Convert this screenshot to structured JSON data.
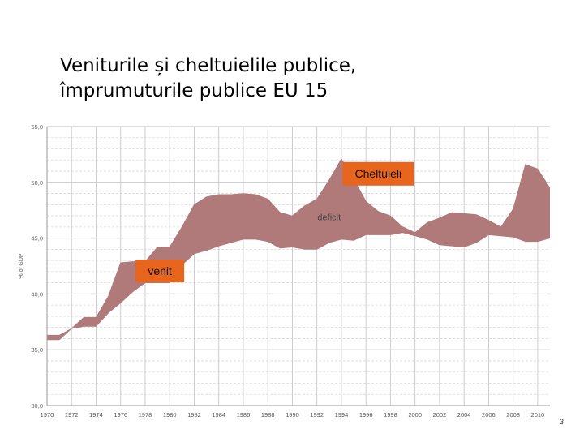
{
  "slide": {
    "title_line1": "Veniturile și cheltuielile publice,",
    "title_line2": "împrumuturile publice EU 15",
    "page_number": "3"
  },
  "chart_data": {
    "type": "area",
    "title": "",
    "ylabel": "% of GDP",
    "xlabel": "",
    "ylim": [
      30,
      55
    ],
    "x_ticks": [
      "1970",
      "1972",
      "1974",
      "1976",
      "1978",
      "1980",
      "1982",
      "1984",
      "1986",
      "1988",
      "1990",
      "1992",
      "1994",
      "1996",
      "1998",
      "2000",
      "2002",
      "2004",
      "2006",
      "2008",
      "2010"
    ],
    "y_ticks": [
      "30,0",
      "35,0",
      "40,0",
      "45,0",
      "50,0",
      "55,0"
    ],
    "grid": true,
    "colors": {
      "band": "#b07a7a",
      "label_bg": "#e8651e"
    },
    "series": [
      {
        "name": "Cheltuieli",
        "x": [
          1970,
          1971,
          1972,
          1973,
          1974,
          1975,
          1976,
          1977,
          1978,
          1979,
          1980,
          1981,
          1982,
          1983,
          1984,
          1985,
          1986,
          1987,
          1988,
          1989,
          1990,
          1991,
          1992,
          1993,
          1994,
          1995,
          1996,
          1997,
          1998,
          1999,
          2000,
          2001,
          2002,
          2003,
          2004,
          2005,
          2006,
          2007,
          2008,
          2009,
          2010,
          2011
        ],
        "values": [
          36.3,
          36.3,
          36.9,
          37.9,
          37.9,
          39.8,
          42.8,
          42.9,
          42.9,
          44.2,
          44.2,
          46.0,
          48.0,
          48.7,
          48.9,
          48.9,
          49.0,
          48.9,
          48.5,
          47.3,
          47.0,
          47.9,
          48.5,
          50.2,
          52.1,
          50.3,
          48.3,
          47.4,
          47.0,
          46.0,
          45.5,
          46.4,
          46.8,
          47.3,
          47.2,
          47.1,
          46.6,
          46.0,
          47.6,
          51.6,
          51.2,
          49.5
        ]
      },
      {
        "name": "venit",
        "x": [
          1970,
          1971,
          1972,
          1973,
          1974,
          1975,
          1976,
          1977,
          1978,
          1979,
          1980,
          1981,
          1982,
          1983,
          1984,
          1985,
          1986,
          1987,
          1988,
          1989,
          1990,
          1991,
          1992,
          1993,
          1994,
          1995,
          1996,
          1997,
          1998,
          1999,
          2000,
          2001,
          2002,
          2003,
          2004,
          2005,
          2006,
          2007,
          2008,
          2009,
          2010,
          2011
        ],
        "values": [
          35.9,
          35.9,
          36.9,
          37.1,
          37.1,
          38.3,
          39.2,
          40.2,
          41.0,
          41.0,
          41.0,
          42.6,
          43.6,
          43.9,
          44.3,
          44.6,
          44.9,
          44.9,
          44.7,
          44.1,
          44.2,
          44.0,
          44.0,
          44.6,
          44.9,
          44.8,
          45.3,
          45.3,
          45.3,
          45.5,
          45.2,
          44.9,
          44.4,
          44.3,
          44.2,
          44.6,
          45.3,
          45.2,
          45.1,
          44.7,
          44.7,
          45.0
        ]
      }
    ],
    "annotations": [
      {
        "text": "Cheltuieli",
        "x": 1997,
        "y": 50.8
      },
      {
        "text": "venit",
        "x": 1979.2,
        "y": 42.2
      },
      {
        "text": "deficit",
        "x": 1993,
        "y": 46.6
      }
    ]
  }
}
